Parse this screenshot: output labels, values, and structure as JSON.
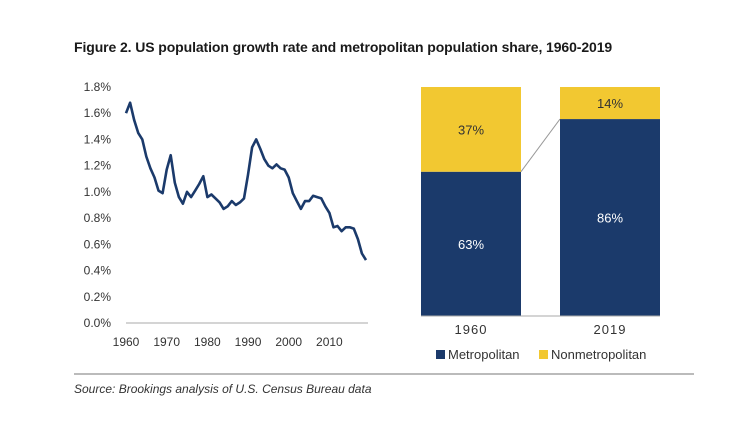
{
  "title": "Figure 2. US population growth rate and metropolitan population share, 1960-2019",
  "source": "Source: Brookings analysis of U.S. Census Bureau data",
  "colors": {
    "line": "#1b3a6b",
    "metro": "#1b3a6b",
    "nonmetro": "#f2c831",
    "axis": "#aaaaaa"
  },
  "chart_data": [
    {
      "type": "line",
      "title": "",
      "xlabel": "",
      "ylabel": "",
      "xlim": [
        1960,
        2019
      ],
      "ylim": [
        0,
        0.018
      ],
      "x_ticks": [
        1960,
        1970,
        1980,
        1990,
        2000,
        2010
      ],
      "y_ticks": [
        "0.0%",
        "0.2%",
        "0.4%",
        "0.6%",
        "0.8%",
        "1.0%",
        "1.2%",
        "1.4%",
        "1.6%",
        "1.8%"
      ],
      "grid": false,
      "series": [
        {
          "x": [
            1960,
            1961,
            1962,
            1963,
            1964,
            1965,
            1966,
            1967,
            1968,
            1969,
            1970,
            1971,
            1972,
            1973,
            1974,
            1975,
            1976,
            1977,
            1978,
            1979,
            1980,
            1981,
            1982,
            1983,
            1984,
            1985,
            1986,
            1987,
            1988,
            1989,
            1990,
            1991,
            1992,
            1993,
            1994,
            1995,
            1996,
            1997,
            1998,
            1999,
            2000,
            2001,
            2002,
            2003,
            2004,
            2005,
            2006,
            2007,
            2008,
            2009,
            2010,
            2011,
            2012,
            2013,
            2014,
            2015,
            2016,
            2017,
            2018,
            2019
          ],
          "values": [
            0.016,
            0.0168,
            0.0155,
            0.0145,
            0.014,
            0.0127,
            0.0118,
            0.0111,
            0.0101,
            0.0099,
            0.0117,
            0.0128,
            0.0107,
            0.0096,
            0.0091,
            0.01,
            0.0096,
            0.0101,
            0.0106,
            0.0112,
            0.0096,
            0.0098,
            0.0095,
            0.0092,
            0.0087,
            0.0089,
            0.0093,
            0.009,
            0.0092,
            0.0095,
            0.0113,
            0.0134,
            0.014,
            0.0133,
            0.0125,
            0.012,
            0.0118,
            0.0121,
            0.0118,
            0.0117,
            0.0111,
            0.0099,
            0.0093,
            0.0087,
            0.0093,
            0.0093,
            0.0097,
            0.0096,
            0.0095,
            0.0089,
            0.0084,
            0.0073,
            0.0074,
            0.007,
            0.0073,
            0.0073,
            0.0072,
            0.0064,
            0.0053,
            0.0048
          ]
        }
      ]
    },
    {
      "type": "bar",
      "stacked": true,
      "title": "",
      "categories": [
        "1960",
        "2019"
      ],
      "series": [
        {
          "name": "Metropolitan",
          "values": [
            63,
            86
          ],
          "labels": [
            "63%",
            "86%"
          ]
        },
        {
          "name": "Nonmetropolitan",
          "values": [
            37,
            14
          ],
          "labels": [
            "37%",
            "14%"
          ]
        }
      ],
      "ylim": [
        0,
        100
      ],
      "legend": "bottom"
    }
  ]
}
